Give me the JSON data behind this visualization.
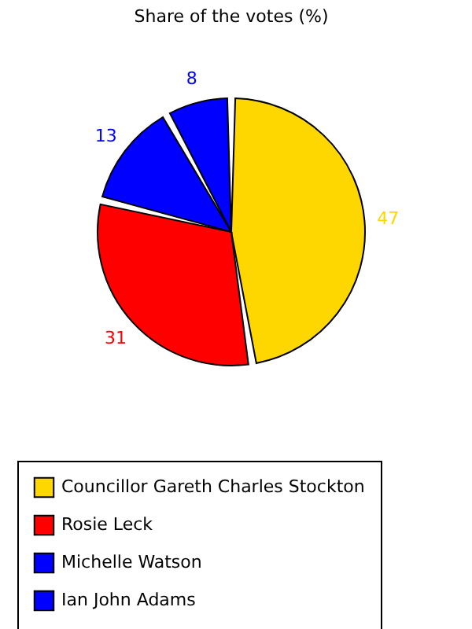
{
  "chart_data": {
    "type": "pie",
    "title": "Share of the votes (%)",
    "categories": [
      "Councillor Gareth Charles Stockton",
      "Rosie Leck",
      "Michelle Watson",
      "Ian John Adams"
    ],
    "values": [
      47,
      31,
      13,
      8
    ],
    "colors": [
      "#ffd700",
      "#ff0000",
      "#0000ff",
      "#0000ff"
    ],
    "data_labels": true,
    "legend": "bottom"
  }
}
